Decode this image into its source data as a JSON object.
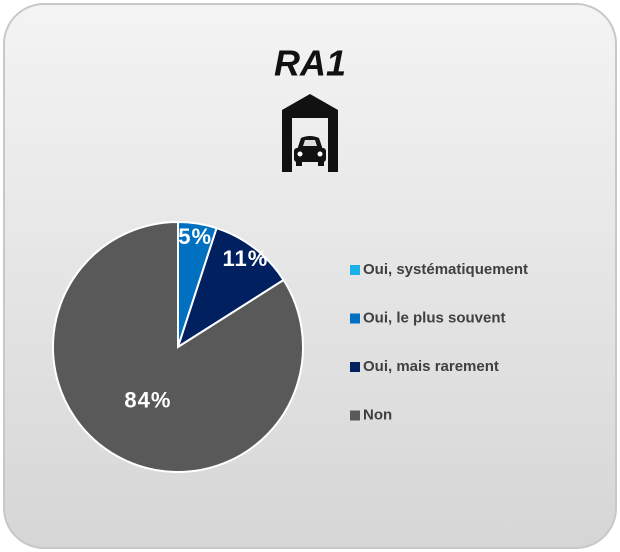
{
  "chart_data": {
    "type": "pie",
    "title": "RA1",
    "categories": [
      "Oui, systématiquement",
      "Oui, le plus souvent",
      "Oui, mais rarement",
      "Non"
    ],
    "values": [
      0,
      5,
      11,
      84
    ],
    "value_labels": [
      null,
      "5%",
      "11%",
      "84%"
    ],
    "colors": [
      "#1ab0e8",
      "#0070c0",
      "#002060",
      "#595959"
    ],
    "legend": "right"
  }
}
